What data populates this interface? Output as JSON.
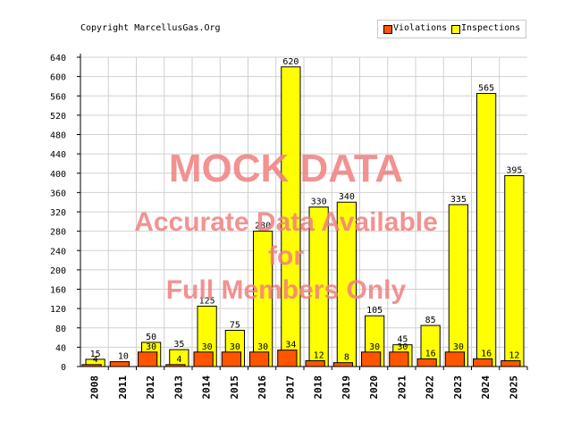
{
  "copyright": "Copyright MarcellusGas.Org",
  "watermark": {
    "line1": "MOCK DATA",
    "line2": "Accurate Data Available",
    "line3": "for",
    "line4": "Full Members Only",
    "color": "#f08080"
  },
  "chart_data": {
    "type": "bar",
    "categories": [
      "2008",
      "2011",
      "2012",
      "2013",
      "2014",
      "2015",
      "2016",
      "2017",
      "2018",
      "2019",
      "2020",
      "2021",
      "2022",
      "2023",
      "2024",
      "2025"
    ],
    "series": [
      {
        "name": "Violations",
        "color": "#ff5500",
        "values": [
          4,
          10,
          30,
          4,
          30,
          30,
          30,
          34,
          12,
          8,
          30,
          30,
          16,
          30,
          16,
          12
        ],
        "labels": [
          "4",
          "10",
          "30",
          "4",
          "30",
          "30",
          "30",
          "34",
          "12",
          "8",
          "30",
          "30",
          "16",
          "30",
          "16",
          "12"
        ]
      },
      {
        "name": "Inspections",
        "color": "#ffff00",
        "values": [
          15,
          null,
          50,
          35,
          125,
          75,
          280,
          620,
          330,
          340,
          105,
          45,
          85,
          335,
          565,
          395
        ],
        "labels": [
          "15",
          "",
          "50",
          "35",
          "125",
          "75",
          "280",
          "620",
          "330",
          "340",
          "105",
          "45",
          "85",
          "335",
          "565",
          "395"
        ]
      }
    ],
    "yticks": [
      0,
      40,
      80,
      120,
      160,
      200,
      240,
      280,
      320,
      360,
      400,
      440,
      480,
      520,
      560,
      600,
      640
    ],
    "ylim": [
      0,
      640
    ],
    "grid": true,
    "legend_position": "top-right"
  }
}
